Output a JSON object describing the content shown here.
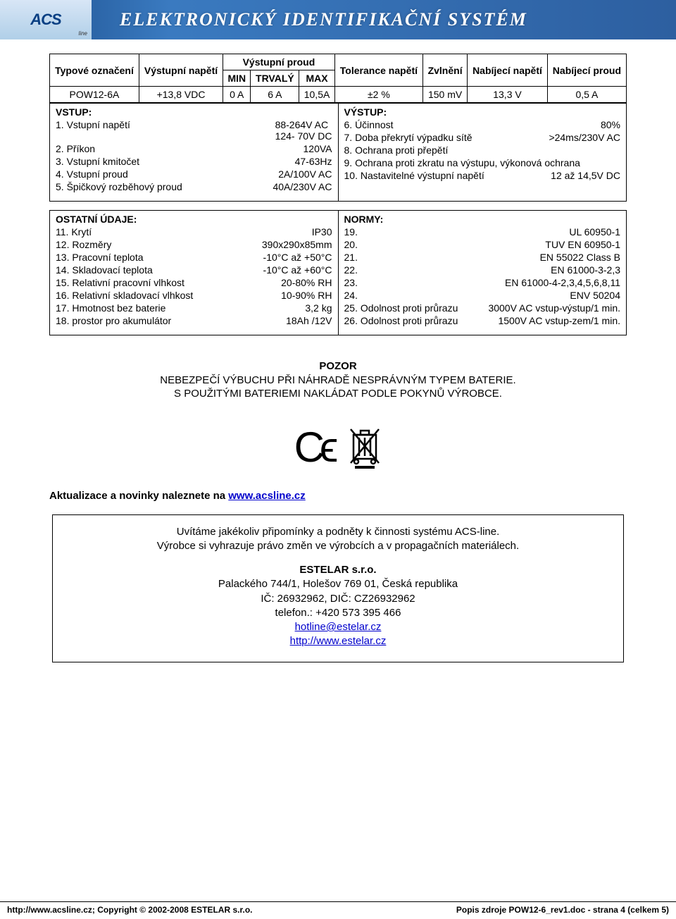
{
  "header": {
    "logo_main": "ACS",
    "logo_sub": "line",
    "title": "ELEKTRONICKÝ IDENTIFIKAČNÍ SYSTÉM"
  },
  "spec_table": {
    "type": "table",
    "border_color": "#000000",
    "background_color": "#ffffff",
    "font_size": 14,
    "headers": {
      "type_label": "Typové označení",
      "out_voltage": "Výstupní napětí",
      "out_current": "Výstupní proud",
      "min": "MIN",
      "steady": "TRVALÝ",
      "max": "MAX",
      "tolerance": "Tolerance napětí",
      "ripple": "Zvlnění",
      "charge_v": "Nabíjecí napětí",
      "charge_i": "Nabíjecí proud"
    },
    "row": {
      "type": "POW12-6A",
      "out_voltage": "+13,8 VDC",
      "min": "0 A",
      "steady": "6 A",
      "max": "10,5A",
      "tolerance": "±2 %",
      "ripple": "150 mV",
      "charge_v": "13,3 V",
      "charge_i": "0,5 A"
    }
  },
  "vstup": {
    "title": "VSTUP:",
    "items": [
      {
        "k": "1. Vstupní napětí",
        "v": "88-264V AC\n124-  70V DC"
      },
      {
        "k": "2. Příkon",
        "v": "120VA"
      },
      {
        "k": "3. Vstupní kmitočet",
        "v": "47-63Hz"
      },
      {
        "k": "4. Vstupní proud",
        "v": "2A/100V AC"
      },
      {
        "k": "5. Špičkový rozběhový proud",
        "v": "40A/230V AC"
      }
    ]
  },
  "vystup": {
    "title": "VÝSTUP:",
    "items": [
      {
        "k": "6. Účinnost",
        "v": "80%"
      },
      {
        "k": "7. Doba překrytí výpadku sítě",
        "v": ">24ms/230V AC"
      },
      {
        "k": "8. Ochrana proti přepětí",
        "v": ""
      },
      {
        "k": "9. Ochrana proti zkratu na výstupu, výkonová ochrana",
        "v": ""
      },
      {
        "k": "10. Nastavitelné výstupní napětí",
        "v": "12 až 14,5V DC"
      }
    ]
  },
  "ostatni": {
    "title": "OSTATNÍ ÚDAJE:",
    "items": [
      {
        "k": "11. Krytí",
        "v": "IP30"
      },
      {
        "k": "12. Rozměry",
        "v": "390x290x85mm"
      },
      {
        "k": "13. Pracovní teplota",
        "v": "-10°C až +50°C"
      },
      {
        "k": "14. Skladovací teplota",
        "v": "-10°C až +60°C"
      },
      {
        "k": "15. Relativní pracovní vlhkost",
        "v": "20-80% RH"
      },
      {
        "k": "16. Relativní skladovací vlhkost",
        "v": "10-90% RH"
      },
      {
        "k": "17. Hmotnost bez baterie",
        "v": "3,2 kg"
      },
      {
        "k": "18. prostor pro akumulátor",
        "v": "18Ah /12V"
      }
    ]
  },
  "normy": {
    "title": "NORMY:",
    "items": [
      {
        "k": "19.",
        "v": "UL 60950-1"
      },
      {
        "k": "20.",
        "v": "TUV EN 60950-1"
      },
      {
        "k": "21.",
        "v": "EN 55022 Class B"
      },
      {
        "k": "22.",
        "v": "EN 61000-3-2,3"
      },
      {
        "k": "23.",
        "v": "EN 61000-4-2,3,4,5,6,8,11"
      },
      {
        "k": "24.",
        "v": "ENV 50204"
      },
      {
        "k": "25. Odolnost proti průrazu",
        "v": "3000V AC vstup-výstup/1 min."
      },
      {
        "k": "26. Odolnost proti průrazu",
        "v": "1500V AC vstup-zem/1 min."
      }
    ]
  },
  "warning": {
    "title": "POZOR",
    "line1": "NEBEZPEČÍ VÝBUCHU PŘI NÁHRADĚ NESPRÁVNÝM TYPEM BATERIE.",
    "line2": "S POUŽITÝMI BATERIEMI NAKLÁDAT PODLE POKYNŮ VÝROBCE."
  },
  "icons": {
    "ce_label": "CE",
    "weee_label": "weee-bin-icon"
  },
  "update": {
    "prefix": "Aktualizace a novinky naleznete na ",
    "link": "www.acsline.cz"
  },
  "company": {
    "intro1": "Uvítáme jakékoliv připomínky a podněty k činnosti systému ACS-line.",
    "intro2": "Výrobce si vyhrazuje právo změn ve výrobcích a v propagačních materiálech.",
    "name": "ESTELAR s.r.o.",
    "address": "Palackého 744/1, Holešov 769 01, Česká republika",
    "ids": "IČ: 26932962, DIČ: CZ26932962",
    "phone": "telefon.: +420 573 395 466",
    "email": "hotline@estelar.cz",
    "web": "http://www.estelar.cz"
  },
  "footer": {
    "left": "http://www.acsline.cz; Copyright © 2002-2008 ESTELAR s.r.o.",
    "right": "Popis zdroje POW12-6_rev1.doc - strana 4 (celkem 5)"
  }
}
